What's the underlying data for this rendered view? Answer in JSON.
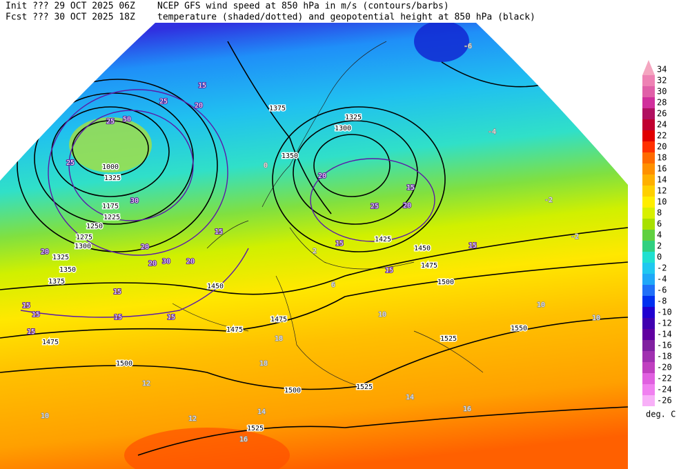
{
  "header": {
    "init_label": "Init  ??? 29 OCT 2025 06Z",
    "fcst_label": "Fcst ??? 30 OCT 2025 18Z",
    "title_line1": "NCEP GFS wind speed at 850 hPa in m/s (contours/barbs)",
    "title_line2": "temperature (shaded/dotted) and geopotential height at 850 hPa (black)"
  },
  "colorbar": {
    "labels": [
      34,
      32,
      30,
      28,
      26,
      24,
      22,
      20,
      18,
      16,
      14,
      12,
      10,
      8,
      6,
      4,
      2,
      0,
      -2,
      -4,
      -6,
      -8,
      -10,
      -12,
      -14,
      -16,
      -18,
      -20,
      -22,
      -24,
      -26
    ],
    "colors": [
      "#f4a6c0",
      "#ee82b4",
      "#e060a8",
      "#d0309c",
      "#b01060",
      "#c00030",
      "#e00000",
      "#ff3000",
      "#ff6a00",
      "#ff9000",
      "#ffb000",
      "#ffd000",
      "#ffee00",
      "#d8f000",
      "#a8e000",
      "#60d040",
      "#30d080",
      "#20e0d0",
      "#20c8f0",
      "#20a8f8",
      "#2070f8",
      "#0030f0",
      "#2000d0",
      "#4000b0",
      "#6000a0",
      "#8020a0",
      "#a030b0",
      "#c040c0",
      "#e060e0",
      "#f080f0",
      "#f8b0f8"
    ],
    "units": "deg. C"
  },
  "map": {
    "height_labels": [
      1375,
      1325,
      1300,
      1350,
      1000,
      1325,
      1175,
      1225,
      1250,
      1275,
      1300,
      1325,
      1350,
      1375,
      1450,
      1475,
      1475,
      1475,
      1500,
      1500,
      1525,
      1525,
      1550,
      1525,
      1500,
      1425,
      1450,
      1475
    ],
    "wind_labels": [
      15,
      20,
      25,
      25,
      50,
      25,
      30,
      20,
      20,
      30,
      20,
      15,
      15,
      15,
      15,
      15,
      15,
      20,
      20,
      15,
      20,
      25,
      15,
      15,
      15,
      15
    ],
    "temperature_labels": [
      -6,
      -4,
      -2,
      -2,
      0,
      2,
      6,
      10,
      10,
      10,
      12,
      14,
      16,
      14,
      16,
      10,
      12,
      18,
      18
    ]
  }
}
